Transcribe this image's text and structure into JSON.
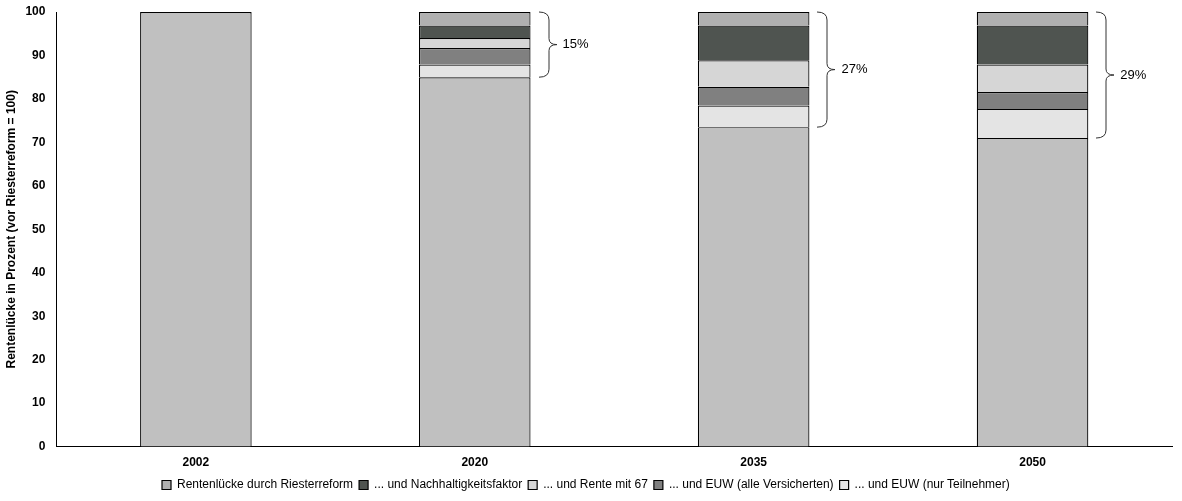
{
  "chart_data": {
    "type": "bar",
    "stacked": true,
    "ylabel": "Rentenlücke in Prozent (vor Riesterreform = 100)",
    "categories": [
      "2002",
      "2020",
      "2035",
      "2050"
    ],
    "series": [
      {
        "color": "#c0c0c0",
        "values": [
          100,
          85,
          73.5,
          71
        ]
      },
      {
        "name": "... und EUW (nur Teilnehmer)",
        "color": "#e4e4e4",
        "values": [
          0,
          2.9,
          5,
          6.7
        ]
      },
      {
        "name": "... und EUW (alle Versicherten)",
        "color": "#808080",
        "values": [
          0,
          3.8,
          4.3,
          3.9
        ]
      },
      {
        "name": "... und Rente mit 67",
        "color": "#d6d6d6",
        "values": [
          0,
          2.3,
          6.1,
          6.3
        ]
      },
      {
        "name": "... und Nachhaltigkeitsfaktor",
        "color": "#4f5450",
        "values": [
          0,
          2.9,
          8,
          9
        ]
      },
      {
        "name": "Rentenlücke durch Riesterreform",
        "color": "#b0b0b0",
        "values": [
          0,
          3.1,
          3.1,
          3.1
        ]
      }
    ],
    "ylim": [
      0,
      100
    ],
    "yticks": [
      0,
      10,
      20,
      30,
      40,
      50,
      60,
      70,
      80,
      90,
      100
    ],
    "grid": false,
    "legend": "bottom",
    "annotations": [
      "15%",
      "27%",
      "29%"
    ]
  }
}
